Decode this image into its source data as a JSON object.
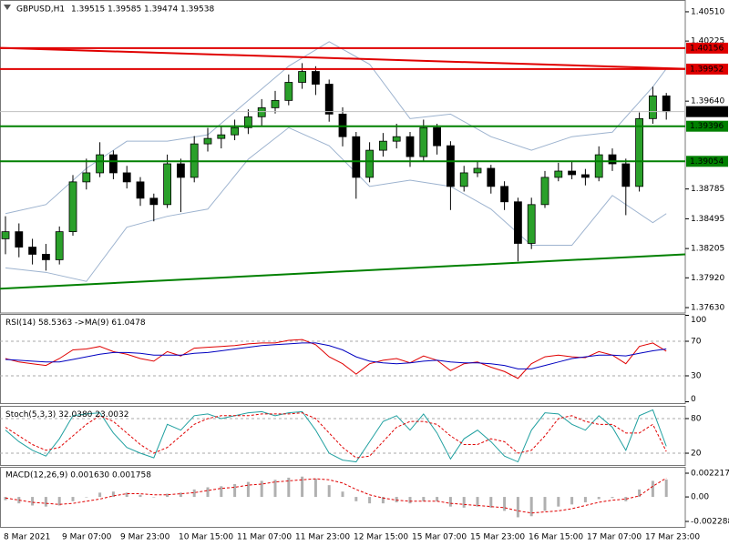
{
  "chart_data": [
    {
      "type": "candlestick",
      "title": "GBPUSD,H1",
      "header_values": [
        1.39515,
        1.39585,
        1.39474,
        1.39538
      ],
      "bull_color": "#2aa02a",
      "bear_color": "#000000",
      "wick_color": "#000000",
      "ohlc": [
        [
          1.383,
          1.3852,
          1.3815,
          1.38369
        ],
        [
          1.38369,
          1.3845,
          1.3812,
          1.38219
        ],
        [
          1.38219,
          1.383,
          1.3805,
          1.38149
        ],
        [
          1.38149,
          1.3825,
          1.3799,
          1.38096
        ],
        [
          1.38096,
          1.3842,
          1.3805,
          1.38369
        ],
        [
          1.38369,
          1.3892,
          1.3833,
          1.38854
        ],
        [
          1.38854,
          1.3908,
          1.3878,
          1.38942
        ],
        [
          1.38942,
          1.3924,
          1.389,
          1.39118
        ],
        [
          1.39118,
          1.3916,
          1.3888,
          1.38942
        ],
        [
          1.38942,
          1.3901,
          1.3879,
          1.38854
        ],
        [
          1.38854,
          1.389,
          1.3862,
          1.38695
        ],
        [
          1.38695,
          1.3874,
          1.3847,
          1.38633
        ],
        [
          1.38633,
          1.3912,
          1.386,
          1.3903
        ],
        [
          1.3903,
          1.3908,
          1.3856,
          1.38898
        ],
        [
          1.38898,
          1.393,
          1.3885,
          1.39224
        ],
        [
          1.39224,
          1.3938,
          1.3915,
          1.39277
        ],
        [
          1.39277,
          1.394,
          1.3918,
          1.39312
        ],
        [
          1.39312,
          1.3946,
          1.3926,
          1.39382
        ],
        [
          1.39382,
          1.3956,
          1.3932,
          1.39488
        ],
        [
          1.39488,
          1.3966,
          1.394,
          1.39576
        ],
        [
          1.39576,
          1.3974,
          1.3952,
          1.39647
        ],
        [
          1.39647,
          1.399,
          1.396,
          1.39823
        ],
        [
          1.39823,
          1.4001,
          1.3976,
          1.39929
        ],
        [
          1.39929,
          1.3998,
          1.397,
          1.39805
        ],
        [
          1.39805,
          1.3985,
          1.3944,
          1.39514
        ],
        [
          1.39514,
          1.3958,
          1.392,
          1.39294
        ],
        [
          1.39294,
          1.3934,
          1.3869,
          1.38898
        ],
        [
          1.38898,
          1.3924,
          1.3885,
          1.39162
        ],
        [
          1.39162,
          1.3933,
          1.391,
          1.3925
        ],
        [
          1.3925,
          1.3942,
          1.3918,
          1.39294
        ],
        [
          1.39294,
          1.3934,
          1.39,
          1.391
        ],
        [
          1.391,
          1.3946,
          1.3906,
          1.39382
        ],
        [
          1.39382,
          1.3942,
          1.3912,
          1.39206
        ],
        [
          1.39206,
          1.3925,
          1.3858,
          1.3881
        ],
        [
          1.3881,
          1.3901,
          1.3876,
          1.38942
        ],
        [
          1.38942,
          1.3906,
          1.389,
          1.38986
        ],
        [
          1.38986,
          1.3902,
          1.3874,
          1.3881
        ],
        [
          1.3881,
          1.3886,
          1.3858,
          1.3866
        ],
        [
          1.3866,
          1.387,
          1.3808,
          1.38255
        ],
        [
          1.38255,
          1.387,
          1.382,
          1.38633
        ],
        [
          1.38633,
          1.3896,
          1.386,
          1.38898
        ],
        [
          1.38898,
          1.3904,
          1.3886,
          1.38959
        ],
        [
          1.38959,
          1.3906,
          1.3888,
          1.38924
        ],
        [
          1.38924,
          1.3898,
          1.3882,
          1.38898
        ],
        [
          1.38898,
          1.392,
          1.3886,
          1.39118
        ],
        [
          1.39118,
          1.3918,
          1.3896,
          1.3903
        ],
        [
          1.3903,
          1.3908,
          1.3853,
          1.3881
        ],
        [
          1.3881,
          1.3953,
          1.3876,
          1.3947
        ],
        [
          1.3947,
          1.3978,
          1.3942,
          1.39691
        ],
        [
          1.39691,
          1.3972,
          1.3946,
          1.39538
        ]
      ],
      "bands": {
        "color": "#9db3cf",
        "x": [
          0,
          3,
          6,
          9,
          12,
          15,
          18,
          21,
          24,
          27,
          30,
          33,
          36,
          39,
          42,
          45,
          48,
          49
        ],
        "upper": [
          1.38545,
          1.38633,
          1.38986,
          1.3925,
          1.3925,
          1.39312,
          1.39647,
          1.39981,
          1.40219,
          1.39999,
          1.3947,
          1.39514,
          1.39294,
          1.39162,
          1.39294,
          1.39338,
          1.39779,
          1.39955
        ],
        "lower": [
          1.38017,
          1.37973,
          1.37885,
          1.38413,
          1.38519,
          1.38589,
          1.39074,
          1.39382,
          1.39206,
          1.3881,
          1.38871,
          1.3881,
          1.38589,
          1.38237,
          1.38237,
          1.38722,
          1.38457,
          1.38545
        ]
      },
      "levels": [
        {
          "value": 1.40156,
          "label": "1.40156",
          "color": "#e00000"
        },
        {
          "value": 1.39952,
          "label": "1.39952",
          "color": "#e00000"
        },
        {
          "value": 1.39396,
          "label": "1.39396",
          "color": "#008000"
        },
        {
          "value": 1.39054,
          "label": "1.39054",
          "color": "#008000"
        }
      ],
      "last_price": {
        "value": 1.39538,
        "label": "1.39538",
        "color": "#000000"
      },
      "trendlines": [
        {
          "start": 1.40158,
          "end": 1.39955,
          "color": "#e00000"
        },
        {
          "start": 1.37814,
          "end": 1.38149,
          "color": "#008000"
        }
      ],
      "ylim": [
        1.37586,
        1.40607
      ],
      "yticks": [
        {
          "value": 1.4051,
          "label": "1.40510"
        },
        {
          "value": 1.40225,
          "label": "1.40225"
        },
        {
          "value": 1.3964,
          "label": "1.39640"
        },
        {
          "value": 1.38785,
          "label": "1.38785"
        },
        {
          "value": 1.38495,
          "label": "1.38495"
        },
        {
          "value": 1.38205,
          "label": "1.38205"
        },
        {
          "value": 1.3792,
          "label": "1.37920"
        },
        {
          "value": 1.3763,
          "label": "1.37630"
        }
      ],
      "xlabels": [
        "8 Mar 2021",
        "9 Mar 07:00",
        "9 Mar 23:00",
        "10 Mar 15:00",
        "11 Mar 07:00",
        "11 Mar 23:00",
        "12 Mar 15:00",
        "15 Mar 07:00",
        "15 Mar 23:00",
        "16 Mar 15:00",
        "17 Mar 07:00",
        "17 Mar 23:00"
      ]
    },
    {
      "type": "line",
      "title": "RSI(14) 58.5363 ->MA(9) 61.0478",
      "ylim": [
        0,
        100
      ],
      "yticks": [
        100,
        70,
        30,
        0
      ],
      "series": [
        {
          "color": "#e00000",
          "values": [
            50,
            46,
            44,
            42,
            50,
            60,
            61,
            64,
            58,
            55,
            50,
            47,
            58,
            53,
            62,
            63,
            64,
            65,
            67,
            68,
            68,
            71,
            72,
            66,
            52,
            44,
            32,
            44,
            48,
            50,
            45,
            53,
            48,
            36,
            44,
            46,
            40,
            35,
            27,
            44,
            52,
            54,
            52,
            51,
            58,
            54,
            44,
            64,
            68,
            58.5363
          ]
        },
        {
          "color": "#0000c0",
          "values": [
            49,
            48,
            47,
            46,
            46,
            49,
            52,
            55,
            57,
            57,
            56,
            54,
            54,
            54,
            56,
            57,
            59,
            61,
            63,
            65,
            66,
            67,
            68,
            68,
            65,
            60,
            52,
            47,
            45,
            44,
            45,
            47,
            48,
            46,
            45,
            45,
            44,
            42,
            38,
            38,
            42,
            46,
            50,
            52,
            54,
            54,
            53,
            56,
            59,
            61.0478
          ]
        }
      ]
    },
    {
      "type": "line",
      "title": "Stoch(5,3,3) 32.0380 23.0032",
      "ylim": [
        0,
        100
      ],
      "yticks": [
        80,
        20
      ],
      "series": [
        {
          "color": "#20a0a0",
          "values": [
            60,
            40,
            25,
            15,
            45,
            85,
            88,
            90,
            55,
            30,
            20,
            12,
            70,
            60,
            85,
            88,
            80,
            85,
            90,
            92,
            85,
            90,
            92,
            60,
            20,
            8,
            5,
            40,
            75,
            85,
            60,
            88,
            55,
            10,
            45,
            60,
            40,
            15,
            5,
            60,
            90,
            88,
            70,
            60,
            85,
            65,
            25,
            85,
            95,
            32.038
          ]
        },
        {
          "color": "#e00000",
          "dashed": true,
          "values": [
            65,
            50,
            35,
            25,
            30,
            50,
            70,
            85,
            75,
            55,
            35,
            20,
            30,
            50,
            70,
            80,
            85,
            85,
            85,
            88,
            88,
            88,
            90,
            80,
            55,
            30,
            12,
            15,
            40,
            65,
            75,
            75,
            70,
            50,
            35,
            35,
            45,
            40,
            20,
            25,
            50,
            80,
            85,
            75,
            70,
            70,
            55,
            55,
            70,
            23.0032
          ]
        }
      ]
    },
    {
      "type": "macd",
      "title": "MACD(12,26,9) 0.001630 0.001758",
      "ylim": [
        -0.002713,
        0.002812
      ],
      "yticks": [
        0.002217,
        {
          "value": 0,
          "label": "0.00"
        },
        -0.002288
      ],
      "histogram": {
        "color": "#b0b0b0",
        "values": [
          -0.0003,
          -0.0006,
          -0.0008,
          -0.0009,
          -0.0008,
          -0.0004,
          0,
          0.0004,
          0.0005,
          0.0004,
          0.0002,
          0,
          0.0003,
          0.0004,
          0.0007,
          0.0009,
          0.001,
          0.0012,
          0.0014,
          0.0015,
          0.0016,
          0.0018,
          0.0019,
          0.0017,
          0.0011,
          0.0005,
          -0.0004,
          -0.0006,
          -0.0006,
          -0.0005,
          -0.0006,
          -0.0004,
          -0.0004,
          -0.0009,
          -0.001,
          -0.0009,
          -0.001,
          -0.0013,
          -0.0019,
          -0.0018,
          -0.0013,
          -0.0009,
          -0.0007,
          -0.0005,
          -0.0002,
          -0.0001,
          -0.0004,
          0.0007,
          0.0015,
          0.00163
        ]
      },
      "series": [
        {
          "color": "#e00000",
          "dashed": true,
          "values": [
            -0.0001,
            -0.0003,
            -0.0005,
            -0.0006,
            -0.0007,
            -0.0006,
            -0.0004,
            -0.0002,
            0.0001,
            0.0003,
            0.0003,
            0.0002,
            0.0002,
            0.0003,
            0.0004,
            0.0006,
            0.0008,
            0.0009,
            0.0011,
            0.0012,
            0.0014,
            0.0015,
            0.0016,
            0.0017,
            0.0016,
            0.0013,
            0.0007,
            0.0002,
            -0.0001,
            -0.0003,
            -0.0004,
            -0.0004,
            -0.0004,
            -0.0006,
            -0.0007,
            -0.0008,
            -0.0009,
            -0.001,
            -0.0013,
            -0.0015,
            -0.0014,
            -0.0013,
            -0.0011,
            -0.0008,
            -0.0005,
            -0.0003,
            -0.0002,
            0.0001,
            0.001,
            0.001758
          ]
        }
      ]
    }
  ]
}
